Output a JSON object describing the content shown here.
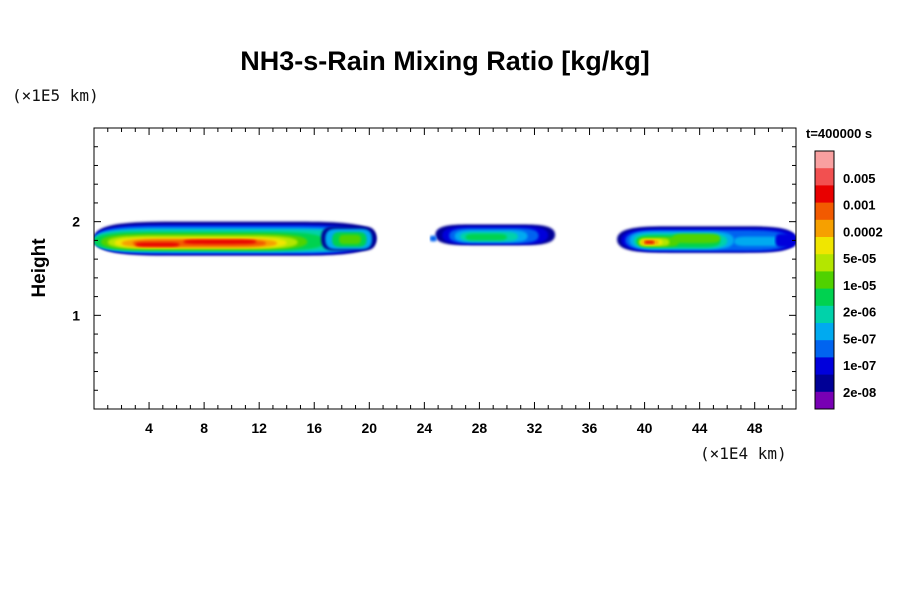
{
  "chart_data": {
    "type": "heatmap",
    "title": "NH3-s-Rain Mixing Ratio [kg/kg]",
    "ylabel": "Height",
    "xlabel": "",
    "x_unit_label": "(×1E4 km)",
    "y_unit_label": "(×1E5 km)",
    "time_label": "t=400000 s",
    "xlim": [
      0,
      51
    ],
    "ylim": [
      0,
      3
    ],
    "x_ticks": [
      4,
      8,
      12,
      16,
      20,
      24,
      28,
      32,
      36,
      40,
      44,
      48
    ],
    "y_ticks": [
      1,
      2
    ],
    "colorbar": {
      "labels": [
        "0.005",
        "0.001",
        "0.0002",
        "5e-05",
        "1e-05",
        "2e-06",
        "5e-07",
        "1e-07",
        "2e-08"
      ],
      "colors_top_to_bottom": [
        "#f9a0a0",
        "#f25050",
        "#e80000",
        "#f25a00",
        "#f6a000",
        "#f0e600",
        "#b4e600",
        "#50d200",
        "#00d250",
        "#00d2aa",
        "#00aaf0",
        "#0064f0",
        "#0000dc",
        "#000096",
        "#7800b4"
      ]
    },
    "clouds": [
      {
        "x_range": [
          0,
          20.5
        ],
        "y_range": [
          1.6,
          2.0
        ],
        "peak": "2e-04 to 1e-03",
        "peak_x": [
          2,
          14
        ],
        "peak_y": 1.77
      },
      {
        "x_range": [
          24.5,
          33.5
        ],
        "y_range": [
          1.77,
          1.97
        ],
        "peak": "2e-06 to 1e-05"
      },
      {
        "x_range": [
          38,
          51
        ],
        "y_range": [
          1.67,
          1.93
        ],
        "peak": "2e-04 to 1e-03",
        "peak_x": [
          39,
          41
        ],
        "peak_y": 1.78
      }
    ]
  }
}
